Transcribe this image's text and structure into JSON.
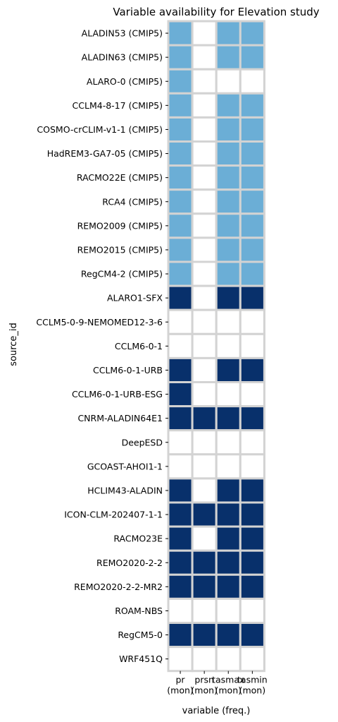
{
  "chart_data": {
    "type": "heatmap",
    "title": "Variable availability for Elevation study",
    "xlabel": "variable (freq.)",
    "ylabel": "source_id",
    "x_ticks": [
      {
        "var": "pr",
        "freq": "(mon)"
      },
      {
        "var": "prsn",
        "freq": "(mon)"
      },
      {
        "var": "tasmax",
        "freq": "(mon)"
      },
      {
        "var": "tasmin",
        "freq": "(mon)"
      }
    ],
    "y_ticks": [
      "ALADIN53 (CMIP5)",
      "ALADIN63 (CMIP5)",
      "ALARO-0 (CMIP5)",
      "CCLM4-8-17 (CMIP5)",
      "COSMO-crCLIM-v1-1 (CMIP5)",
      "HadREM3-GA7-05 (CMIP5)",
      "RACMO22E (CMIP5)",
      "RCA4 (CMIP5)",
      "REMO2009 (CMIP5)",
      "REMO2015 (CMIP5)",
      "RegCM4-2 (CMIP5)",
      "ALARO1-SFX",
      "CCLM5-0-9-NEMOMED12-3-6",
      "CCLM6-0-1",
      "CCLM6-0-1-URB",
      "CCLM6-0-1-URB-ESG",
      "CNRM-ALADIN64E1",
      "DeepESD",
      "GCOAST-AHOI1-1",
      "HCLIM43-ALADIN",
      "ICON-CLM-202407-1-1",
      "RACMO23E",
      "REMO2020-2-2",
      "REMO2020-2-2-MR2",
      "ROAM-NBS",
      "RegCM5-0",
      "WRF451Q"
    ],
    "values": [
      [
        1,
        0,
        1,
        1
      ],
      [
        1,
        0,
        1,
        1
      ],
      [
        1,
        0,
        0,
        0
      ],
      [
        1,
        0,
        1,
        1
      ],
      [
        1,
        0,
        1,
        1
      ],
      [
        1,
        0,
        1,
        1
      ],
      [
        1,
        0,
        1,
        1
      ],
      [
        1,
        0,
        1,
        1
      ],
      [
        1,
        0,
        1,
        1
      ],
      [
        1,
        0,
        1,
        1
      ],
      [
        1,
        0,
        1,
        1
      ],
      [
        2,
        0,
        2,
        2
      ],
      [
        0,
        0,
        0,
        0
      ],
      [
        0,
        0,
        0,
        0
      ],
      [
        2,
        0,
        2,
        2
      ],
      [
        2,
        0,
        0,
        0
      ],
      [
        2,
        2,
        2,
        2
      ],
      [
        0,
        0,
        0,
        0
      ],
      [
        0,
        0,
        0,
        0
      ],
      [
        2,
        0,
        2,
        2
      ],
      [
        2,
        2,
        2,
        2
      ],
      [
        2,
        0,
        2,
        2
      ],
      [
        2,
        2,
        2,
        2
      ],
      [
        2,
        2,
        2,
        2
      ],
      [
        0,
        0,
        0,
        0
      ],
      [
        2,
        2,
        2,
        2
      ],
      [
        0,
        0,
        0,
        0
      ]
    ],
    "colors": {
      "0": "#ffffff",
      "1": "#6baed6",
      "2": "#08306b",
      "gridline": "#d3d3d3"
    },
    "grid": false,
    "legend": "none"
  }
}
